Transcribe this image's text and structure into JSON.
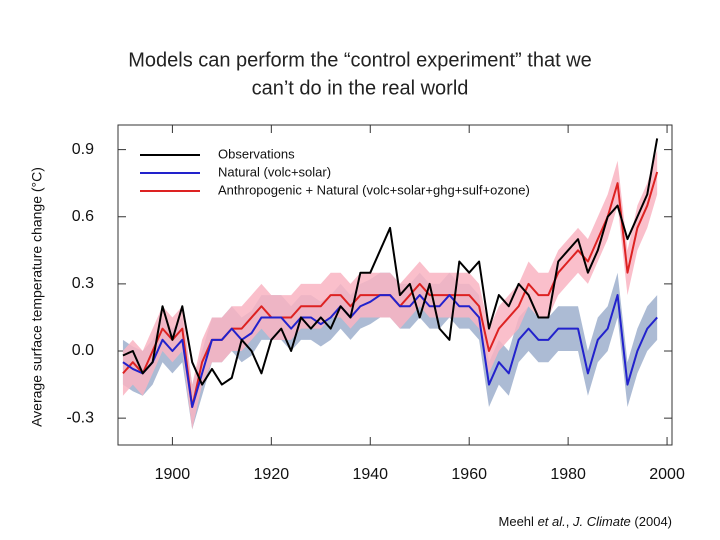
{
  "chart_data": {
    "type": "line",
    "title": [
      "Models can perform the “control experiment” that we",
      "can’t do in the real world"
    ],
    "y_label": "Average surface temperature change (°C)",
    "citation": [
      "Meehl",
      "et al.",
      ",",
      "J. Climate",
      "(2004)"
    ],
    "x": [
      1890,
      1892,
      1894,
      1896,
      1898,
      1900,
      1902,
      1904,
      1906,
      1908,
      1910,
      1912,
      1914,
      1916,
      1918,
      1920,
      1922,
      1924,
      1926,
      1928,
      1930,
      1932,
      1934,
      1936,
      1938,
      1940,
      1942,
      1944,
      1946,
      1948,
      1950,
      1952,
      1954,
      1956,
      1958,
      1960,
      1962,
      1964,
      1966,
      1968,
      1970,
      1972,
      1974,
      1976,
      1978,
      1980,
      1982,
      1984,
      1986,
      1988,
      1990,
      1992,
      1994,
      1996,
      1998
    ],
    "series": [
      {
        "name": "Observations",
        "color": "#000000",
        "values": [
          -0.02,
          0.0,
          -0.1,
          -0.05,
          0.2,
          0.05,
          0.2,
          -0.05,
          -0.15,
          -0.08,
          -0.15,
          -0.12,
          0.05,
          0.0,
          -0.1,
          0.05,
          0.1,
          0.0,
          0.15,
          0.1,
          0.15,
          0.1,
          0.2,
          0.15,
          0.35,
          0.35,
          0.45,
          0.55,
          0.25,
          0.3,
          0.15,
          0.3,
          0.1,
          0.05,
          0.4,
          0.35,
          0.4,
          0.1,
          0.25,
          0.2,
          0.3,
          0.25,
          0.15,
          0.15,
          0.4,
          0.45,
          0.5,
          0.35,
          0.45,
          0.6,
          0.65,
          0.5,
          0.6,
          0.7,
          0.95
        ]
      },
      {
        "name": "Natural (volc+solar)",
        "color": "#2222cc",
        "band_color": "#9dafcc",
        "spread": 0.1,
        "values": [
          -0.05,
          -0.08,
          -0.1,
          -0.05,
          0.05,
          0.0,
          0.05,
          -0.25,
          -0.1,
          0.05,
          0.05,
          0.1,
          0.05,
          0.08,
          0.15,
          0.15,
          0.15,
          0.1,
          0.15,
          0.15,
          0.12,
          0.15,
          0.2,
          0.15,
          0.2,
          0.22,
          0.25,
          0.25,
          0.2,
          0.2,
          0.25,
          0.2,
          0.2,
          0.25,
          0.2,
          0.2,
          0.15,
          -0.15,
          -0.05,
          -0.1,
          0.05,
          0.1,
          0.05,
          0.05,
          0.1,
          0.1,
          0.1,
          -0.1,
          0.05,
          0.1,
          0.25,
          -0.15,
          0.0,
          0.1,
          0.15
        ]
      },
      {
        "name": "Anthropogenic + Natural (volc+solar+ghg+sulf+ozone)",
        "color": "#dd2222",
        "band_color": "#f9b4c2",
        "spread": 0.1,
        "values": [
          -0.1,
          -0.05,
          -0.1,
          0.0,
          0.1,
          0.05,
          0.1,
          -0.25,
          -0.05,
          0.05,
          0.05,
          0.1,
          0.1,
          0.15,
          0.2,
          0.15,
          0.15,
          0.15,
          0.2,
          0.2,
          0.2,
          0.25,
          0.25,
          0.2,
          0.25,
          0.25,
          0.25,
          0.25,
          0.2,
          0.25,
          0.3,
          0.25,
          0.25,
          0.25,
          0.25,
          0.25,
          0.2,
          0.0,
          0.1,
          0.15,
          0.2,
          0.3,
          0.25,
          0.25,
          0.35,
          0.4,
          0.45,
          0.4,
          0.5,
          0.6,
          0.75,
          0.35,
          0.55,
          0.65,
          0.8
        ]
      }
    ],
    "xlim": [
      1889,
      2001
    ],
    "xticks": [
      1900,
      1920,
      1940,
      1960,
      1980,
      2000
    ],
    "ylim": [
      -0.42,
      1.01
    ],
    "yticks": [
      -0.3,
      {
        "value": 0,
        "label": "0.0"
      },
      0.3,
      0.6,
      0.9
    ],
    "legend": "upper-left"
  }
}
